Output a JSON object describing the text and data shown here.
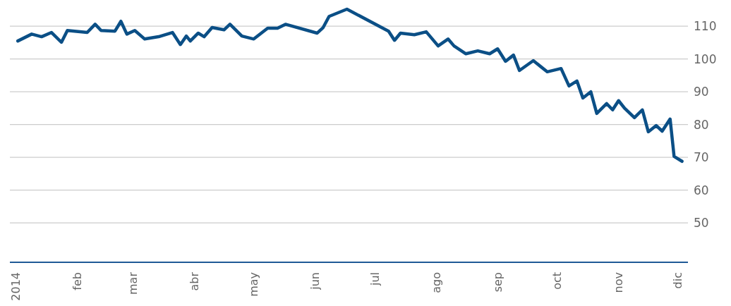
{
  "chart_data": {
    "type": "line",
    "x": [
      "2014-01-02",
      "2014-01-09",
      "2014-01-14",
      "2014-01-19",
      "2014-01-24",
      "2014-01-27",
      "2014-02-06",
      "2014-02-10",
      "2014-02-13",
      "2014-02-20",
      "2014-02-23",
      "2014-02-26",
      "2014-03-02",
      "2014-03-07",
      "2014-03-14",
      "2014-03-21",
      "2014-03-25",
      "2014-03-28",
      "2014-03-30",
      "2014-04-03",
      "2014-04-06",
      "2014-04-10",
      "2014-04-16",
      "2014-04-19",
      "2014-04-25",
      "2014-05-01",
      "2014-05-08",
      "2014-05-13",
      "2014-05-17",
      "2014-06-02",
      "2014-06-05",
      "2014-06-08",
      "2014-06-17",
      "2014-07-08",
      "2014-07-11",
      "2014-07-14",
      "2014-07-21",
      "2014-07-27",
      "2014-08-02",
      "2014-08-07",
      "2014-08-10",
      "2014-08-16",
      "2014-08-22",
      "2014-08-28",
      "2014-09-01",
      "2014-09-05",
      "2014-09-09",
      "2014-09-12",
      "2014-09-19",
      "2014-09-26",
      "2014-10-03",
      "2014-10-07",
      "2014-10-11",
      "2014-10-14",
      "2014-10-18",
      "2014-10-21",
      "2014-10-26",
      "2014-10-29",
      "2014-11-01",
      "2014-11-04",
      "2014-11-09",
      "2014-11-13",
      "2014-11-16",
      "2014-11-20",
      "2014-11-23",
      "2014-11-27",
      "2014-11-29",
      "2014-12-03"
    ],
    "series": [
      {
        "color": "#0b4f86",
        "values": [
          105.5,
          107.6,
          106.8,
          108.1,
          105.1,
          108.7,
          108.1,
          110.6,
          108.7,
          108.5,
          111.5,
          107.6,
          108.7,
          106.1,
          106.8,
          108.1,
          104.4,
          107,
          105.5,
          107.9,
          106.8,
          109.6,
          108.9,
          110.6,
          107,
          106.1,
          109.4,
          109.4,
          110.6,
          107.9,
          109.6,
          113,
          115.2,
          108.5,
          105.7,
          107.9,
          107.4,
          108.3,
          104,
          106.1,
          104,
          101.6,
          102.5,
          101.6,
          103.1,
          99.3,
          101.2,
          96.5,
          99.5,
          96.1,
          97.1,
          91.8,
          93.3,
          88.1,
          90,
          83.4,
          86.4,
          84.5,
          87.3,
          85,
          82.1,
          84.5,
          77.8,
          79.7,
          78,
          81.7,
          70.3,
          68.8
        ]
      }
    ],
    "xlim": [
      "2013-12-29",
      "2014-12-06"
    ],
    "xticks": [
      {
        "value": "2014-01-01",
        "label": "2014"
      },
      {
        "value": "2014-02-01",
        "label": "feb"
      },
      {
        "value": "2014-03-01",
        "label": "mar"
      },
      {
        "value": "2014-04-01",
        "label": "abr"
      },
      {
        "value": "2014-05-01",
        "label": "may"
      },
      {
        "value": "2014-06-01",
        "label": "jun"
      },
      {
        "value": "2014-07-01",
        "label": "jul"
      },
      {
        "value": "2014-08-01",
        "label": "ago"
      },
      {
        "value": "2014-09-01",
        "label": "sep"
      },
      {
        "value": "2014-10-01",
        "label": "oct"
      },
      {
        "value": "2014-11-01",
        "label": "nov"
      },
      {
        "value": "2014-12-01",
        "label": "dic"
      }
    ],
    "ylim": [
      38,
      118
    ],
    "yticks": [
      50,
      60,
      70,
      80,
      90,
      100,
      110
    ],
    "grid": "y",
    "legend": false,
    "marker": "none",
    "line_style": "solid"
  }
}
